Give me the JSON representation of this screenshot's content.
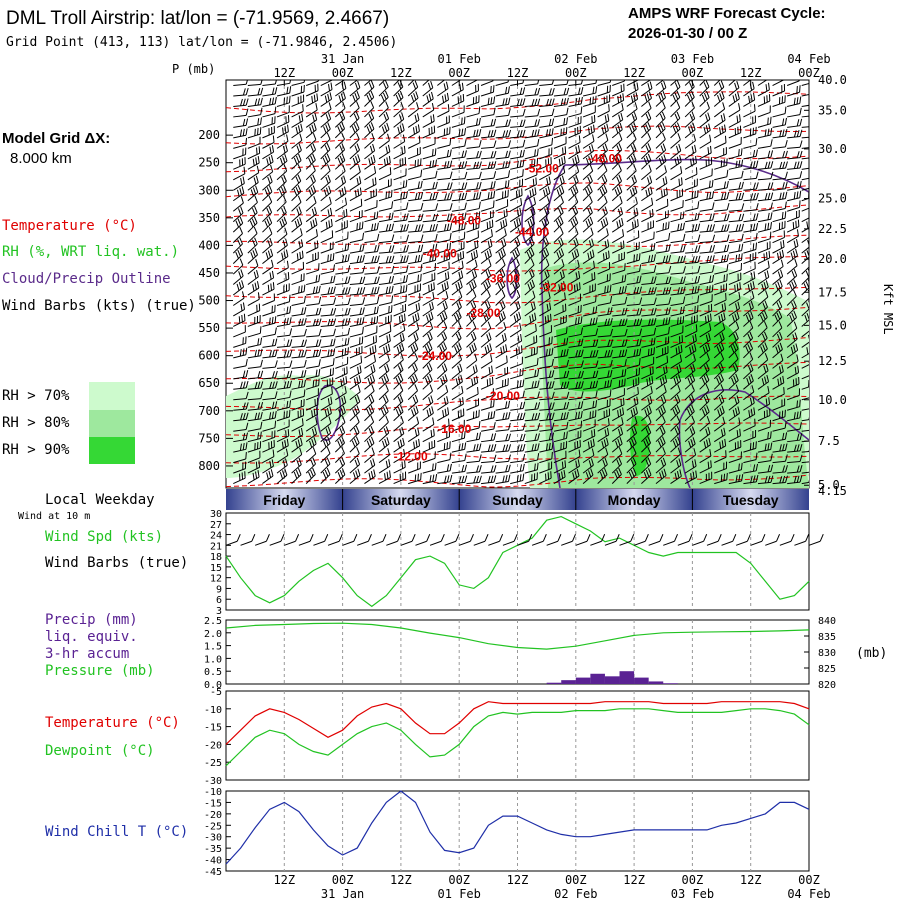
{
  "header": {
    "title": "DML Troll Airstrip:  lat/lon = (-71.9569, 2.4667)",
    "grid_point": "Grid Point (413, 113) lat/lon = (-71.9846, 2.4506)",
    "cycle_label": "AMPS WRF Forecast Cycle:",
    "cycle_value": "2026-01-30 / 00  Z",
    "grid_label": "Model Grid ΔX:",
    "grid_value": "8.000 km"
  },
  "legend": {
    "temperature": "Temperature (°C)",
    "rh": "RH (%, WRT liq. wat.)",
    "cloud": "Cloud/Precip Outline",
    "wind": "Wind Barbs (kts) (true)",
    "rh70": "RH > 70%",
    "rh80": "RH > 80%",
    "rh90": "RH > 90%",
    "local_weekday": "Local Weekday",
    "wind_10m": "Wind at 10 m",
    "wind_spd": "Wind Spd (kts)",
    "wind_barbs": "Wind Barbs (true)",
    "precip1": "Precip (mm)",
    "precip2": "liq. equiv.",
    "precip3": "3-hr accum",
    "pressure": "Pressure (mb)",
    "temp2": "Temperature (°C)",
    "dewpoint": "Dewpoint (°C)",
    "windchill": "Wind Chill T (°C)",
    "p_mb": "P (mb)",
    "kft": "Kft MSL",
    "mb": "(mb)"
  },
  "colors": {
    "temp": "#e00000",
    "rh70": "#cdfacd",
    "rh80": "#9ee89e",
    "rh90": "#35d835",
    "cloud": "#5a2a8a",
    "dew": "#22c322",
    "chill": "#1f2fa8",
    "precip": "#5a2293",
    "day_dark": "#34428f",
    "day_light": "#d6daf0"
  },
  "chart_data": {
    "type": "meteogram",
    "time_axis": {
      "hours": [
        0,
        120
      ],
      "tick_labels": [
        "12Z",
        "00Z",
        "12Z",
        "00Z",
        "12Z",
        "00Z",
        "12Z",
        "00Z",
        "12Z",
        "00Z"
      ],
      "date_labels": [
        "31 Jan",
        "01 Feb",
        "02 Feb",
        "03 Feb",
        "04 Feb"
      ],
      "weekdays": [
        "Friday",
        "Saturday",
        "Sunday",
        "Monday",
        "Tuesday"
      ]
    },
    "pressure_axis": {
      "ylim": [
        100,
        840
      ],
      "ticks": [
        200,
        250,
        300,
        350,
        400,
        450,
        500,
        550,
        600,
        650,
        700,
        750,
        800
      ]
    },
    "height_axis": {
      "labels": [
        "40.0",
        "35.0",
        "30.0",
        "25.0",
        "22.5",
        "20.0",
        "17.5",
        "15.0",
        "12.5",
        "10.0",
        "7.5",
        "5.0",
        "4.15"
      ],
      "pressures": [
        100,
        155,
        225,
        315,
        370,
        425,
        485,
        545,
        610,
        680,
        755,
        835,
        845
      ]
    },
    "temperature_contours": [
      {
        "label": "-48.00",
        "hour": 78,
        "p": 250
      },
      {
        "label": "-52.00",
        "hour": 65,
        "p": 268
      },
      {
        "label": "-48.00",
        "hour": 49,
        "p": 362
      },
      {
        "label": "-44.00",
        "hour": 63,
        "p": 383
      },
      {
        "label": "-40.00",
        "hour": 44,
        "p": 422
      },
      {
        "label": "-36.00",
        "hour": 57,
        "p": 467
      },
      {
        "label": "-32.00",
        "hour": 68,
        "p": 484
      },
      {
        "label": "-28.00",
        "hour": 53,
        "p": 530
      },
      {
        "label": "-24.00",
        "hour": 43,
        "p": 608
      },
      {
        "label": "-20.00",
        "hour": 57,
        "p": 680
      },
      {
        "label": "-16.00",
        "hour": 47,
        "p": 740
      },
      {
        "label": "-12.00",
        "hour": 38,
        "p": 790
      }
    ],
    "wind_speed": {
      "ylim": [
        3,
        30
      ],
      "ticks": [
        3,
        6,
        9,
        12,
        15,
        18,
        21,
        24,
        27,
        30
      ],
      "x": [
        0,
        3,
        6,
        9,
        12,
        15,
        18,
        21,
        24,
        27,
        30,
        33,
        36,
        39,
        42,
        45,
        48,
        51,
        54,
        57,
        60,
        63,
        66,
        69,
        72,
        75,
        78,
        81,
        84,
        87,
        90,
        93,
        96,
        99,
        102,
        105,
        108,
        111,
        114,
        117,
        120
      ],
      "values": [
        18,
        12,
        7,
        5,
        7,
        11,
        14,
        16,
        12,
        7,
        4,
        7,
        12,
        17,
        18,
        16,
        10,
        9,
        12,
        19,
        21,
        23,
        28,
        29,
        27,
        25,
        22,
        23,
        21,
        19,
        18,
        19,
        19,
        19,
        19,
        19,
        16,
        11,
        6,
        7,
        11
      ]
    },
    "pressure": {
      "ylim": [
        820,
        840
      ],
      "ticks": [
        820,
        825,
        830,
        835,
        840
      ],
      "x": [
        0,
        6,
        12,
        18,
        24,
        30,
        36,
        42,
        48,
        54,
        60,
        66,
        72,
        78,
        84,
        90,
        96,
        102,
        108,
        114,
        120
      ],
      "values": [
        837.5,
        838.3,
        838.6,
        838.9,
        839.0,
        838.6,
        837.5,
        835.9,
        834.5,
        832.6,
        831.4,
        830.9,
        831.8,
        833.5,
        835.2,
        836.0,
        836.2,
        836.3,
        836.4,
        836.6,
        836.9
      ]
    },
    "precip": {
      "ylim": [
        0,
        2.5
      ],
      "ticks": [
        "0.0",
        "0.5",
        "1.0",
        "1.5",
        "2.0",
        "2.5"
      ],
      "x": [
        66,
        69,
        72,
        75,
        78,
        81,
        84,
        87,
        90
      ],
      "values": [
        0.05,
        0.15,
        0.25,
        0.4,
        0.3,
        0.5,
        0.25,
        0.1,
        0.03
      ]
    },
    "temperature": {
      "ylim": [
        -30,
        -5
      ],
      "ticks": [
        -5,
        -10,
        -15,
        -20,
        -25,
        -30
      ],
      "x": [
        0,
        3,
        6,
        9,
        12,
        15,
        18,
        21,
        24,
        27,
        30,
        33,
        36,
        39,
        42,
        45,
        48,
        51,
        54,
        57,
        60,
        63,
        66,
        69,
        72,
        75,
        78,
        81,
        84,
        87,
        90,
        93,
        96,
        99,
        102,
        105,
        108,
        111,
        114,
        117,
        120
      ],
      "values": [
        -20,
        -16,
        -12,
        -10,
        -11,
        -13,
        -15.5,
        -18,
        -16,
        -12,
        -9.5,
        -8.5,
        -10,
        -14,
        -17,
        -17,
        -14,
        -10,
        -8,
        -8.5,
        -8.5,
        -8.5,
        -8.5,
        -8.5,
        -8.5,
        -8.5,
        -8,
        -8,
        -8,
        -8,
        -8.5,
        -8.5,
        -8.5,
        -8.5,
        -8,
        -8,
        -8,
        -8,
        -8,
        -8.5,
        -10
      ]
    },
    "dewpoint": {
      "x": [
        0,
        3,
        6,
        9,
        12,
        15,
        18,
        21,
        24,
        27,
        30,
        33,
        36,
        39,
        42,
        45,
        48,
        51,
        54,
        57,
        60,
        63,
        66,
        69,
        72,
        75,
        78,
        81,
        84,
        87,
        90,
        93,
        96,
        99,
        102,
        105,
        108,
        111,
        114,
        117,
        120
      ],
      "values": [
        -26,
        -22,
        -18,
        -16,
        -17,
        -20,
        -22,
        -23,
        -20,
        -17,
        -15,
        -14,
        -16,
        -20,
        -23.5,
        -23,
        -20,
        -15,
        -12,
        -11,
        -11.5,
        -11,
        -11,
        -11,
        -10.5,
        -10.5,
        -10.5,
        -10,
        -10,
        -10,
        -10.5,
        -11,
        -11,
        -11,
        -11,
        -10.5,
        -10,
        -10,
        -10.5,
        -11.5,
        -14.5
      ]
    },
    "windchill": {
      "ylim": [
        -45,
        -10
      ],
      "ticks": [
        -10,
        -15,
        -20,
        -25,
        -30,
        -35,
        -40,
        -45
      ],
      "x": [
        0,
        3,
        6,
        9,
        12,
        15,
        18,
        21,
        24,
        27,
        30,
        33,
        36,
        39,
        42,
        45,
        48,
        51,
        54,
        57,
        60,
        63,
        66,
        69,
        72,
        75,
        78,
        81,
        84,
        87,
        90,
        93,
        96,
        99,
        102,
        105,
        108,
        111,
        114,
        117,
        120
      ],
      "values": [
        -42,
        -35,
        -26,
        -18,
        -15,
        -19,
        -27,
        -34,
        -38,
        -35,
        -24,
        -15,
        -10,
        -15,
        -28,
        -36,
        -37,
        -35,
        -25,
        -21,
        -21,
        -24,
        -27,
        -29,
        -30,
        -30,
        -29,
        -28,
        -27,
        -27,
        -27,
        -27,
        -27,
        -27,
        -25,
        -24,
        -22,
        -20,
        -15,
        -15,
        -18
      ]
    }
  }
}
